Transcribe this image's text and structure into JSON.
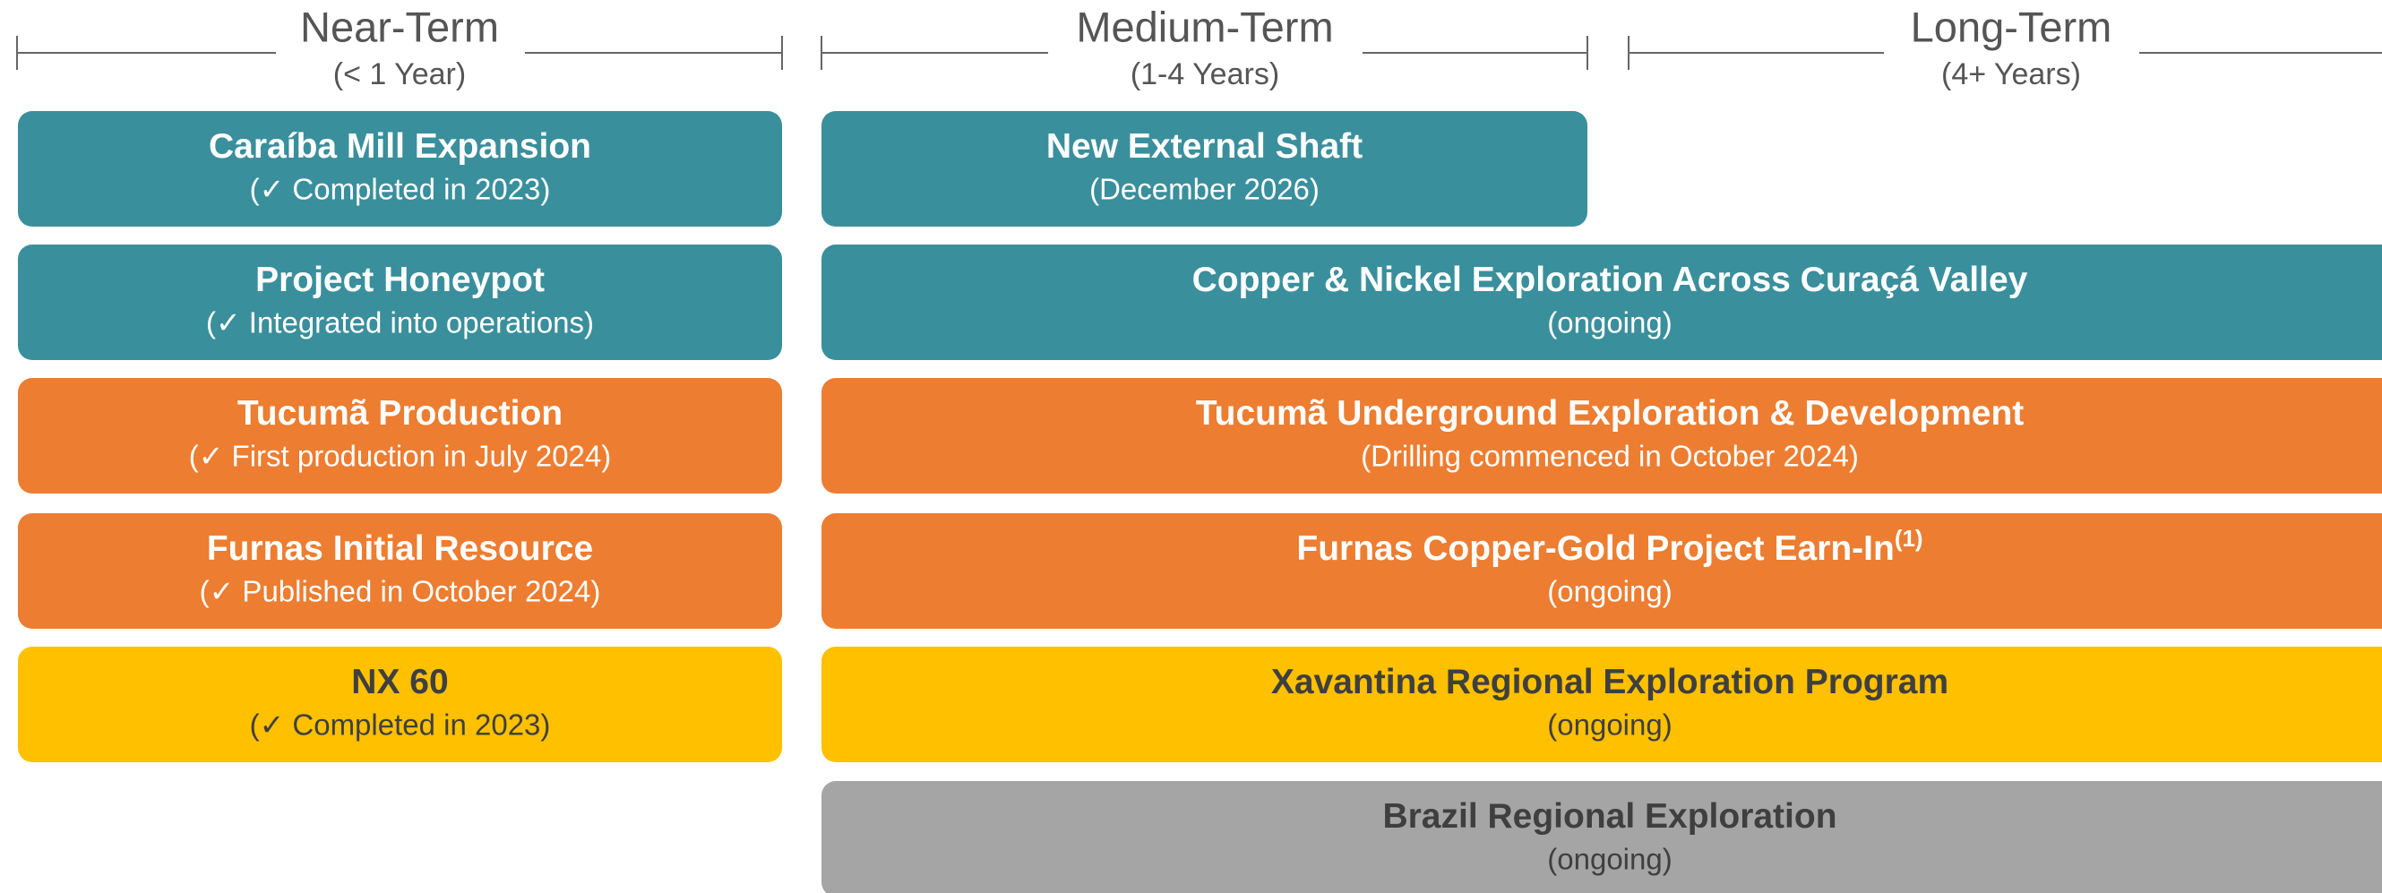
{
  "columns": [
    {
      "title": "Near-Term",
      "subtitle": "(< 1 Year)"
    },
    {
      "title": "Medium-Term",
      "subtitle": "(1-4 Years)"
    },
    {
      "title": "Long-Term",
      "subtitle": "(4+ Years)"
    }
  ],
  "near_term_items": [
    {
      "title": "Caraíba Mill Expansion",
      "subtitle": "(✓ Completed in 2023)",
      "color": "#3a8f9c"
    },
    {
      "title": "Project Honeypot",
      "subtitle": "(✓ Integrated into operations)",
      "color": "#3a8f9c"
    },
    {
      "title": "Tucumã Production",
      "subtitle": "(✓ First production in July 2024)",
      "color": "#ed7d31"
    },
    {
      "title": "Furnas Initial Resource",
      "subtitle": "(✓ Published in October 2024)",
      "color": "#ed7d31"
    },
    {
      "title": "NX 60",
      "subtitle": "(✓ Completed in 2023)",
      "color": "#ffc000"
    }
  ],
  "medium_term_items": [
    {
      "title": "New External Shaft",
      "subtitle": "(December 2026)",
      "color": "#3a8f9c"
    }
  ],
  "spanning_items": [
    {
      "title": "Copper & Nickel Exploration Across Curaçá Valley",
      "subtitle": "(ongoing)",
      "color": "#3a8f9c"
    },
    {
      "title": "Tucumã Underground Exploration & Development",
      "subtitle": "(Drilling commenced in October 2024)",
      "color": "#ed7d31"
    },
    {
      "title": "Furnas Copper-Gold Project Earn-In",
      "superscript": "(1)",
      "subtitle": "(ongoing)",
      "color": "#ed7d31"
    },
    {
      "title": "Xavantina Regional Exploration Program",
      "subtitle": "(ongoing)",
      "color": "#ffc000"
    },
    {
      "title": "Brazil Regional Exploration",
      "subtitle": "(ongoing)",
      "color": "#a5a5a5"
    }
  ]
}
